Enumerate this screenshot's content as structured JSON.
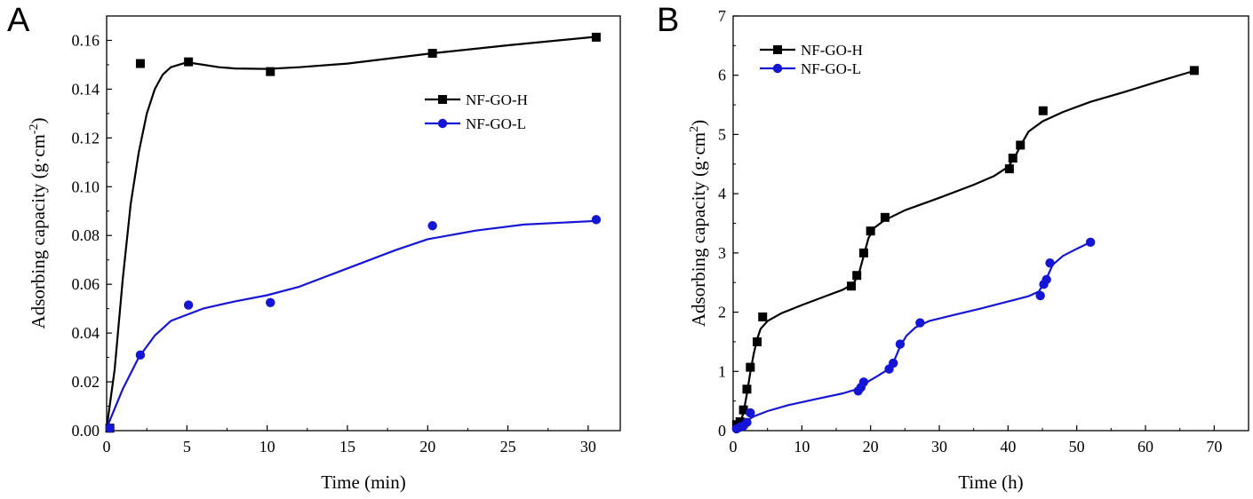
{
  "panels": [
    {
      "letter": "A",
      "chart_data": {
        "type": "line",
        "title": "",
        "xlabel": "Time (min)",
        "ylabel_main": "Adsorbing capacity (g·cm",
        "ylabel_sup": "-2",
        "ylabel_tail": ")",
        "xlim": [
          0,
          32
        ],
        "ylim": [
          0,
          0.17
        ],
        "xticks": [
          0,
          5,
          10,
          15,
          20,
          25,
          30
        ],
        "xtick_labels": [
          "0",
          "5",
          "10",
          "15",
          "20",
          "25",
          "30"
        ],
        "yticks": [
          0,
          0.02,
          0.04,
          0.06,
          0.08,
          0.1,
          0.12,
          0.14,
          0.16
        ],
        "ytick_labels": [
          "0.00",
          "0.02",
          "0.04",
          "0.06",
          "0.08",
          "0.10",
          "0.12",
          "0.14",
          "0.16"
        ],
        "legend_position": "upper-right",
        "series": [
          {
            "name": "NF-GO-H",
            "color": "#000000",
            "marker": "square",
            "points": [
              [
                0.2,
                0.001
              ],
              [
                2.1,
                0.1505
              ],
              [
                5.1,
                0.1512
              ],
              [
                10.2,
                0.1472
              ],
              [
                20.3,
                0.1547
              ],
              [
                30.5,
                0.1613
              ]
            ],
            "curve": [
              [
                0,
                0.001
              ],
              [
                0.5,
                0.025
              ],
              [
                1,
                0.062
              ],
              [
                1.5,
                0.093
              ],
              [
                2,
                0.114
              ],
              [
                2.5,
                0.13
              ],
              [
                3,
                0.14
              ],
              [
                3.5,
                0.146
              ],
              [
                4,
                0.149
              ],
              [
                5,
                0.151
              ],
              [
                6,
                0.15
              ],
              [
                7,
                0.149
              ],
              [
                8,
                0.1485
              ],
              [
                10,
                0.1483
              ],
              [
                12,
                0.149
              ],
              [
                15,
                0.1505
              ],
              [
                20,
                0.1545
              ],
              [
                25,
                0.158
              ],
              [
                30.5,
                0.1615
              ]
            ]
          },
          {
            "name": "NF-GO-L",
            "color": "#1515d6",
            "marker": "circle",
            "points": [
              [
                0.2,
                0.001
              ],
              [
                2.1,
                0.031
              ],
              [
                5.1,
                0.0515
              ],
              [
                10.2,
                0.0525
              ],
              [
                20.3,
                0.084
              ],
              [
                30.5,
                0.0865
              ]
            ],
            "curve": [
              [
                0,
                0.001
              ],
              [
                0.5,
                0.009
              ],
              [
                1,
                0.017
              ],
              [
                2,
                0.03
              ],
              [
                3,
                0.039
              ],
              [
                4,
                0.045
              ],
              [
                5,
                0.0475
              ],
              [
                6,
                0.05
              ],
              [
                8,
                0.053
              ],
              [
                10,
                0.0555
              ],
              [
                12,
                0.059
              ],
              [
                15,
                0.0665
              ],
              [
                18,
                0.074
              ],
              [
                20,
                0.0785
              ],
              [
                23,
                0.082
              ],
              [
                26,
                0.0845
              ],
              [
                30.5,
                0.086
              ]
            ]
          }
        ]
      }
    },
    {
      "letter": "B",
      "chart_data": {
        "type": "line",
        "title": "",
        "xlabel": "Time (h)",
        "ylabel_main": "Adsorbing capacity (g·cm",
        "ylabel_sup": "2",
        "ylabel_tail": ")",
        "xlim": [
          0,
          75
        ],
        "ylim": [
          0,
          7
        ],
        "xticks": [
          0,
          10,
          20,
          30,
          40,
          50,
          60,
          70
        ],
        "xtick_labels": [
          "0",
          "10",
          "20",
          "30",
          "40",
          "50",
          "60",
          "70"
        ],
        "yticks": [
          0,
          1,
          2,
          3,
          4,
          5,
          6,
          7
        ],
        "ytick_labels": [
          "0",
          "1",
          "2",
          "3",
          "4",
          "5",
          "6",
          "7"
        ],
        "legend_position": "upper-left",
        "series": [
          {
            "name": "NF-GO-H",
            "color": "#000000",
            "marker": "square",
            "points": [
              [
                0.5,
                0.1
              ],
              [
                1,
                0.15
              ],
              [
                1.5,
                0.35
              ],
              [
                2,
                0.7
              ],
              [
                2.5,
                1.07
              ],
              [
                3.5,
                1.5
              ],
              [
                4.3,
                1.92
              ],
              [
                17.2,
                2.44
              ],
              [
                18,
                2.62
              ],
              [
                19,
                3.0
              ],
              [
                20,
                3.37
              ],
              [
                22.1,
                3.6
              ],
              [
                40.2,
                4.42
              ],
              [
                40.7,
                4.6
              ],
              [
                41.8,
                4.82
              ],
              [
                45.1,
                5.4
              ],
              [
                67.1,
                6.08
              ]
            ],
            "curve": [
              [
                0.5,
                0.05
              ],
              [
                1,
                0.12
              ],
              [
                1.5,
                0.3
              ],
              [
                2,
                0.62
              ],
              [
                2.5,
                0.98
              ],
              [
                3,
                1.3
              ],
              [
                3.5,
                1.55
              ],
              [
                4,
                1.72
              ],
              [
                5,
                1.85
              ],
              [
                7,
                1.98
              ],
              [
                10,
                2.12
              ],
              [
                13,
                2.25
              ],
              [
                16,
                2.38
              ],
              [
                17.5,
                2.48
              ],
              [
                18.3,
                2.65
              ],
              [
                19,
                2.95
              ],
              [
                19.7,
                3.25
              ],
              [
                20.5,
                3.42
              ],
              [
                22,
                3.55
              ],
              [
                25,
                3.72
              ],
              [
                30,
                3.93
              ],
              [
                35,
                4.15
              ],
              [
                38,
                4.3
              ],
              [
                40,
                4.45
              ],
              [
                41,
                4.62
              ],
              [
                42,
                4.85
              ],
              [
                43,
                5.05
              ],
              [
                45,
                5.22
              ],
              [
                48,
                5.38
              ],
              [
                52,
                5.55
              ],
              [
                57,
                5.72
              ],
              [
                62,
                5.9
              ],
              [
                67,
                6.07
              ]
            ]
          },
          {
            "name": "NF-GO-L",
            "color": "#1515d6",
            "marker": "circle",
            "points": [
              [
                0.5,
                0.03
              ],
              [
                1,
                0.06
              ],
              [
                1.5,
                0.08
              ],
              [
                2,
                0.14
              ],
              [
                2.5,
                0.3
              ],
              [
                18.2,
                0.67
              ],
              [
                18.6,
                0.73
              ],
              [
                19,
                0.82
              ],
              [
                22.7,
                1.04
              ],
              [
                23.3,
                1.14
              ],
              [
                24.3,
                1.46
              ],
              [
                27.2,
                1.82
              ],
              [
                44.7,
                2.28
              ],
              [
                45.2,
                2.47
              ],
              [
                45.6,
                2.55
              ],
              [
                46.1,
                2.83
              ],
              [
                52,
                3.18
              ]
            ],
            "curve": [
              [
                0.3,
                0.02
              ],
              [
                1,
                0.08
              ],
              [
                2,
                0.17
              ],
              [
                3,
                0.24
              ],
              [
                5,
                0.33
              ],
              [
                8,
                0.43
              ],
              [
                12,
                0.53
              ],
              [
                16,
                0.63
              ],
              [
                18,
                0.7
              ],
              [
                19.5,
                0.82
              ],
              [
                21,
                0.92
              ],
              [
                22.5,
                1.03
              ],
              [
                23.5,
                1.2
              ],
              [
                24.3,
                1.42
              ],
              [
                25.2,
                1.6
              ],
              [
                26.5,
                1.74
              ],
              [
                28.5,
                1.85
              ],
              [
                32,
                1.95
              ],
              [
                36,
                2.06
              ],
              [
                40,
                2.18
              ],
              [
                43,
                2.27
              ],
              [
                44.5,
                2.35
              ],
              [
                45.2,
                2.48
              ],
              [
                45.8,
                2.62
              ],
              [
                46.5,
                2.8
              ],
              [
                48,
                2.95
              ],
              [
                50,
                3.07
              ],
              [
                52,
                3.18
              ]
            ]
          }
        ]
      }
    }
  ]
}
